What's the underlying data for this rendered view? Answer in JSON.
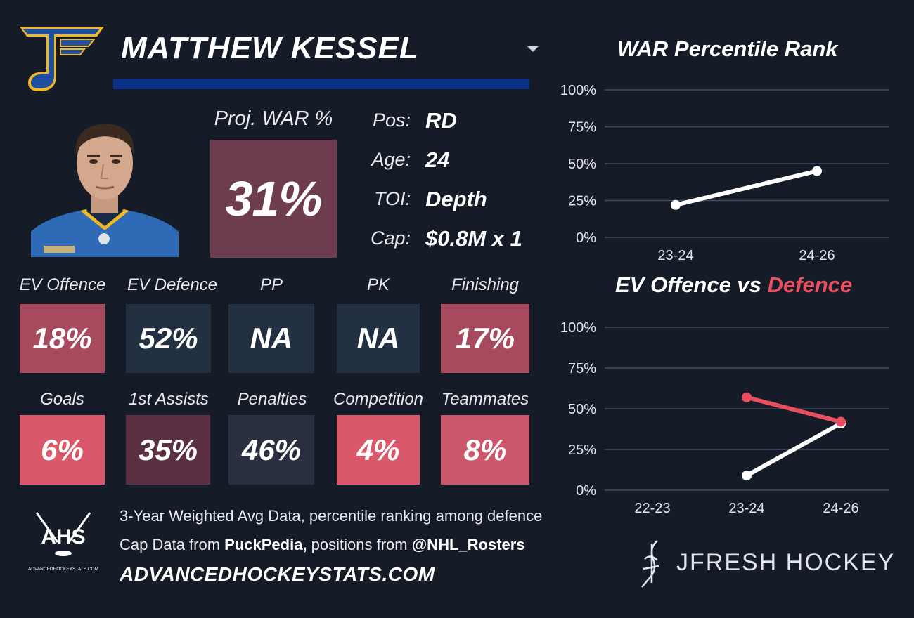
{
  "header": {
    "player_name": "MATTHEW KESSEL"
  },
  "projection": {
    "label": "Proj. WAR %",
    "value": "31%",
    "color": "#6e3c4f"
  },
  "info": [
    {
      "label": "Pos:",
      "value": "RD"
    },
    {
      "label": "Age:",
      "value": "24"
    },
    {
      "label": "TOI:",
      "value": "Depth"
    },
    {
      "label": "Cap:",
      "value": "$0.8M x 1"
    }
  ],
  "tiles_row1": [
    {
      "label": "EV Offence",
      "value": "18%",
      "color": "#a84a5e"
    },
    {
      "label": "EV Defence",
      "value": "52%",
      "color": "#223041"
    },
    {
      "label": "PP",
      "value": "NA",
      "color": "#223041"
    },
    {
      "label": "PK",
      "value": "NA",
      "color": "#223041"
    },
    {
      "label": "Finishing",
      "value": "17%",
      "color": "#a84a5e"
    }
  ],
  "tiles_row2": [
    {
      "label": "Goals",
      "value": "6%",
      "color": "#d9586a"
    },
    {
      "label": "1st Assists",
      "value": "35%",
      "color": "#5a3042"
    },
    {
      "label": "Penalties",
      "value": "46%",
      "color": "#2a2f3f"
    },
    {
      "label": "Competition",
      "value": "4%",
      "color": "#d9586a"
    },
    {
      "label": "Teammates",
      "value": "8%",
      "color": "#cc566a"
    }
  ],
  "footer": {
    "ahs_logo_text": "AHS",
    "ahs_logo_subtext": "ADVANCEDHOCKEYSTATS.COM",
    "line1": "3-Year Weighted Avg Data, percentile ranking among defence",
    "line2_prefix": "Cap Data from ",
    "line2_source1": "PuckPedia,",
    "line2_middle": " positions from ",
    "line2_source2": "@NHL_Rosters",
    "site": "ADVANCEDHOCKEYSTATS.COM",
    "brand": "JFRESH HOCKEY"
  },
  "chart_data": [
    {
      "type": "line",
      "title": "WAR Percentile Rank",
      "categories": [
        "23-24",
        "24-26"
      ],
      "series": [
        {
          "values": [
            22,
            45
          ],
          "color": "#ffffff"
        }
      ],
      "ylim": [
        0,
        100
      ],
      "yticks": [
        "0%",
        "25%",
        "50%",
        "75%",
        "100%"
      ],
      "grid": true
    },
    {
      "type": "line",
      "title_part1": "EV Offence vs ",
      "title_part2": "Defence",
      "categories": [
        "22-23",
        "23-24",
        "24-26"
      ],
      "series": [
        {
          "name": "EV Offence",
          "values": [
            null,
            9,
            41
          ],
          "color": "#ffffff"
        },
        {
          "name": "Defence",
          "values": [
            null,
            57,
            42
          ],
          "color": "#e9505f"
        }
      ],
      "ylim": [
        0,
        100
      ],
      "yticks": [
        "0%",
        "25%",
        "50%",
        "75%",
        "100%"
      ],
      "grid": true
    }
  ]
}
